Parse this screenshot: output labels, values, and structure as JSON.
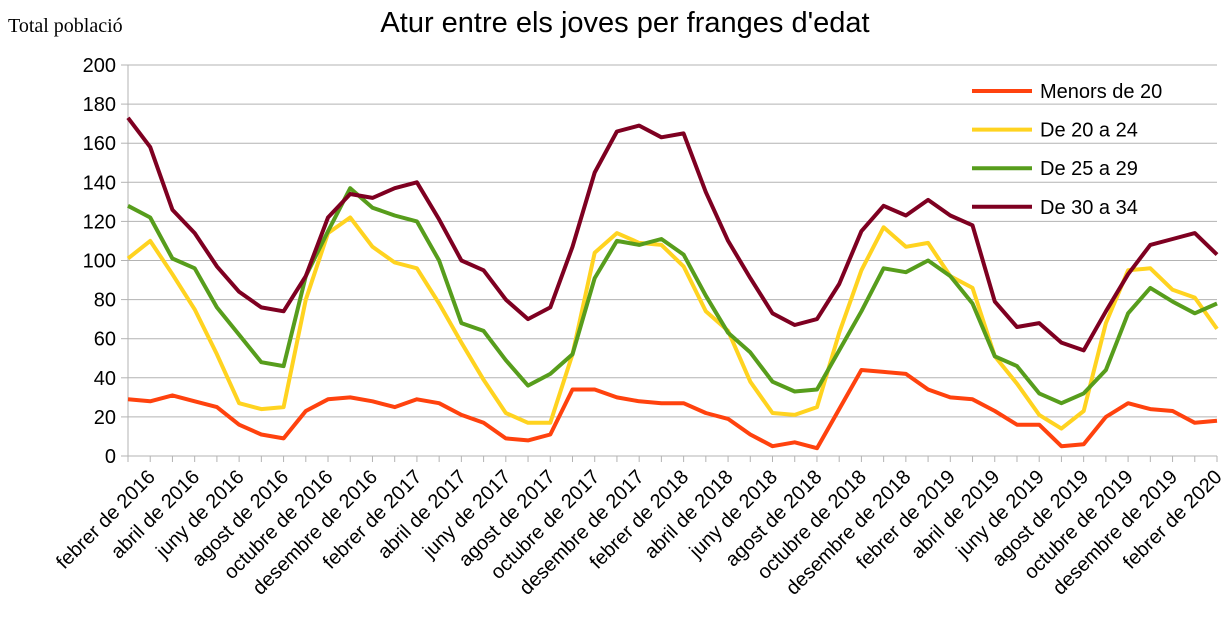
{
  "chart_data": {
    "type": "line",
    "title": "Atur entre els joves per franges d'edat",
    "y_label": "Total població",
    "categories": [
      null,
      "febrer de 2016",
      null,
      "abril de 2016",
      null,
      "juny de 2016",
      null,
      "agost de 2016",
      null,
      "octubre de 2016",
      null,
      "desembre de 2016",
      null,
      "febrer de 2017",
      null,
      "abril de 2017",
      null,
      "juny de 2017",
      null,
      "agost de 2017",
      null,
      "octubre de 2017",
      null,
      "desembre de 2017",
      null,
      "febrer de 2018",
      null,
      "abril de 2018",
      null,
      "juny de 2018",
      null,
      "agost de 2018",
      null,
      "octubre de 2018",
      null,
      "desembre de 2018",
      null,
      "febrer de 2019",
      null,
      "abril de 2019",
      null,
      "juny de 2019",
      null,
      "agost de 2019",
      null,
      "octubre de 2019",
      null,
      "desembre de 2019",
      null,
      "febrer de 2020"
    ],
    "series": [
      {
        "name": "Menors de 20",
        "color": "#ff420e",
        "values": [
          29,
          28,
          31,
          28,
          25,
          16,
          11,
          9,
          23,
          29,
          30,
          28,
          25,
          29,
          27,
          21,
          17,
          9,
          8,
          11,
          34,
          34,
          30,
          28,
          27,
          27,
          22,
          19,
          11,
          5,
          7,
          4,
          24,
          44,
          43,
          42,
          34,
          30,
          29,
          23,
          16,
          16,
          5,
          6,
          20,
          27,
          24,
          23,
          17,
          18
        ]
      },
      {
        "name": "De 20 a 24",
        "color": "#ffd320",
        "values": [
          101,
          110,
          93,
          75,
          52,
          27,
          24,
          25,
          80,
          114,
          122,
          107,
          99,
          96,
          78,
          58,
          39,
          22,
          17,
          17,
          52,
          104,
          114,
          109,
          108,
          97,
          74,
          64,
          38,
          22,
          21,
          25,
          63,
          95,
          117,
          107,
          109,
          92,
          86,
          51,
          37,
          21,
          14,
          23,
          68,
          95,
          96,
          85,
          81,
          65
        ]
      },
      {
        "name": "De 25 a 29",
        "color": "#579d1c",
        "values": [
          128,
          122,
          101,
          96,
          76,
          62,
          48,
          46,
          92,
          115,
          137,
          127,
          123,
          120,
          100,
          68,
          64,
          49,
          36,
          42,
          52,
          91,
          110,
          108,
          111,
          103,
          82,
          63,
          53,
          38,
          33,
          34,
          54,
          74,
          96,
          94,
          100,
          92,
          78,
          51,
          46,
          32,
          27,
          32,
          44,
          73,
          86,
          79,
          73,
          78
        ]
      },
      {
        "name": "De 30 a 34",
        "color": "#7e0021",
        "values": [
          173,
          158,
          126,
          114,
          97,
          84,
          76,
          74,
          92,
          122,
          134,
          132,
          137,
          140,
          121,
          100,
          95,
          80,
          70,
          76,
          107,
          145,
          166,
          169,
          163,
          165,
          135,
          110,
          91,
          73,
          67,
          70,
          88,
          115,
          128,
          123,
          131,
          123,
          118,
          79,
          66,
          68,
          58,
          54,
          74,
          93,
          108,
          111,
          114,
          103
        ]
      }
    ],
    "ylim": [
      0,
      200
    ],
    "yticks": [
      0,
      20,
      40,
      60,
      80,
      100,
      120,
      140,
      160,
      180,
      200
    ],
    "grid": true,
    "legend": "top-right"
  }
}
